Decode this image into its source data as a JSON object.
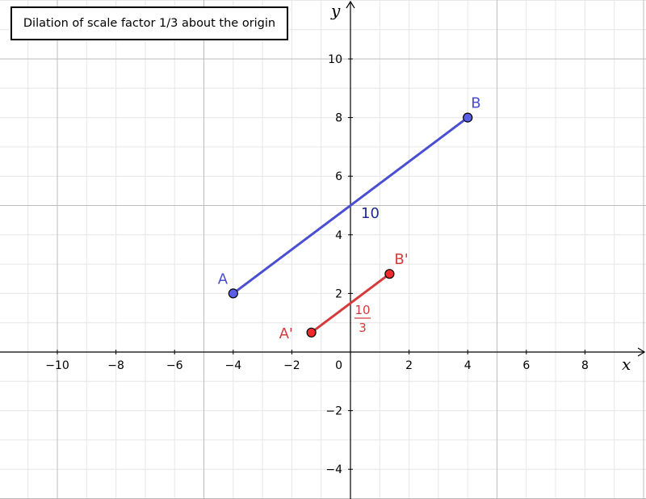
{
  "caption": "Dilation of scale factor 1/3 about the origin",
  "axes": {
    "x_name": "x",
    "y_name": "y",
    "x_ticks": [
      -10,
      -8,
      -6,
      -4,
      -2,
      2,
      4,
      6,
      8
    ],
    "y_ticks": [
      -4,
      -2,
      2,
      4,
      6,
      8,
      10
    ],
    "x_range": [
      -12,
      10
    ],
    "y_range": [
      -5,
      12
    ],
    "origin_label": "0"
  },
  "colors": {
    "original": "#4a4ed1",
    "image": "#d63b3b",
    "length_original": "#1f2a8a",
    "length_image": "#d63b3b"
  },
  "segments": [
    {
      "id": "AB",
      "start": {
        "name": "A",
        "x": -4,
        "y": 2
      },
      "end": {
        "name": "B",
        "x": 4,
        "y": 8
      },
      "length_label": "10",
      "color_key": "original"
    },
    {
      "id": "ApBp",
      "start": {
        "name": "A'",
        "x": -1.3333,
        "y": 0.6667
      },
      "end": {
        "name": "B'",
        "x": 1.3333,
        "y": 2.6667
      },
      "length_numerator": "10",
      "length_denominator": "3",
      "color_key": "image"
    }
  ]
}
